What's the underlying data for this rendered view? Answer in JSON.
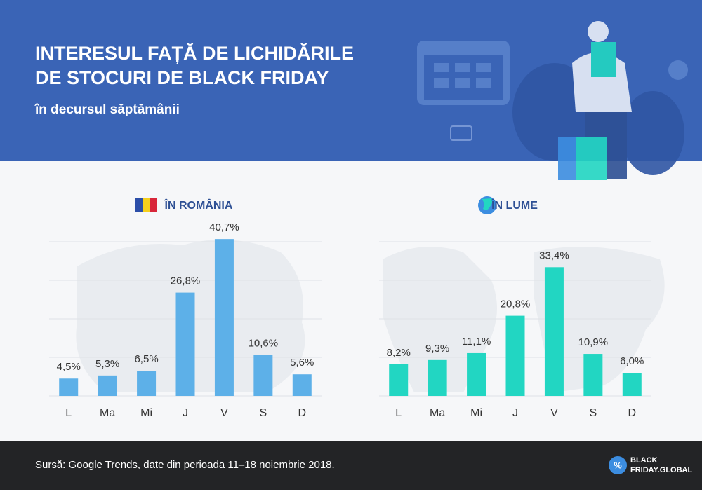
{
  "header": {
    "title_lines": [
      "INTERESUL FAȚĂ DE LICHIDĂRILE",
      "DE STOCURI DE BLACK FRIDAY"
    ],
    "subtitle": "în decursul săptămânii"
  },
  "chart_data": [
    {
      "type": "bar",
      "title": "ÎN ROMÂNIA",
      "categories": [
        "L",
        "Ma",
        "Mi",
        "J",
        "V",
        "S",
        "D"
      ],
      "values": [
        4.5,
        5.3,
        6.5,
        26.8,
        40.7,
        10.6,
        5.6
      ],
      "value_labels": [
        "4,5%",
        "5,3%",
        "6,5%",
        "26,8%",
        "40,7%",
        "10,6%",
        "5,6%"
      ],
      "color": "#5db0e8",
      "ylim": [
        0,
        40
      ],
      "yticks": [
        0,
        10,
        20,
        30,
        40
      ],
      "grid": true
    },
    {
      "type": "bar",
      "title": "ÎN LUME",
      "categories": [
        "L",
        "Ma",
        "Mi",
        "J",
        "V",
        "S",
        "D"
      ],
      "values": [
        8.2,
        9.3,
        11.1,
        20.8,
        33.4,
        10.9,
        6.0
      ],
      "value_labels": [
        "8,2%",
        "9,3%",
        "11,1%",
        "20,8%",
        "33,4%",
        "10,9%",
        "6,0%"
      ],
      "color": "#22d6c2",
      "ylim": [
        0,
        40
      ],
      "yticks": [
        0,
        10,
        20,
        30,
        40
      ],
      "grid": true
    }
  ],
  "footer": {
    "source": "Sursă: Google Trends, date din perioada 11–18 noiembrie 2018.",
    "logo_lines": [
      "BLACK",
      "FRIDAY.GLOBAL"
    ]
  }
}
